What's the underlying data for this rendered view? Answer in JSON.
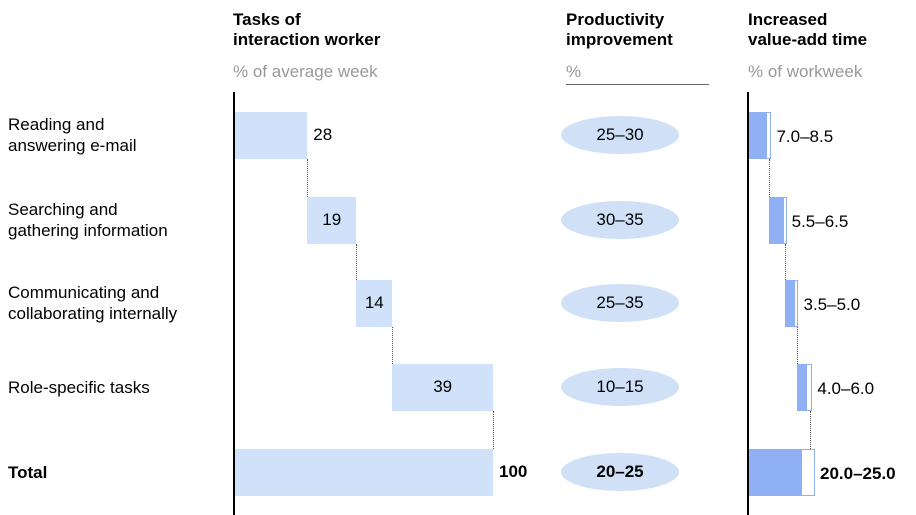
{
  "chart_data": {
    "type": "waterfall",
    "columns": [
      {
        "title": "Tasks of\ninteraction worker",
        "subtitle": "% of average week"
      },
      {
        "title": "Productivity\nimprovement",
        "subtitle": "%"
      },
      {
        "title": "Increased\nvalue-add time",
        "subtitle": "% of workweek"
      }
    ],
    "categories": [
      "Reading and\nanswering e-mail",
      "Searching and\ngathering information",
      "Communicating and\ncollaborating internally",
      "Role-specific tasks",
      "Total"
    ],
    "values": [
      28,
      19,
      14,
      39,
      100
    ],
    "xlim": [
      0,
      100
    ],
    "color": "#cfe2fa",
    "productivity": [
      "25–30",
      "30–35",
      "25–35",
      "10–15",
      "20–25"
    ],
    "value_add": {
      "low": [
        7.0,
        5.5,
        3.5,
        4.0,
        20.0
      ],
      "high": [
        8.5,
        6.5,
        5.0,
        6.0,
        25.0
      ],
      "value_labels": [
        "7.0–8.5",
        "5.5–6.5",
        "3.5–5.0",
        "4.0–6.0",
        "20.0–25.0"
      ],
      "xlim": [
        0,
        25
      ],
      "color": "#8fb0f5"
    }
  }
}
